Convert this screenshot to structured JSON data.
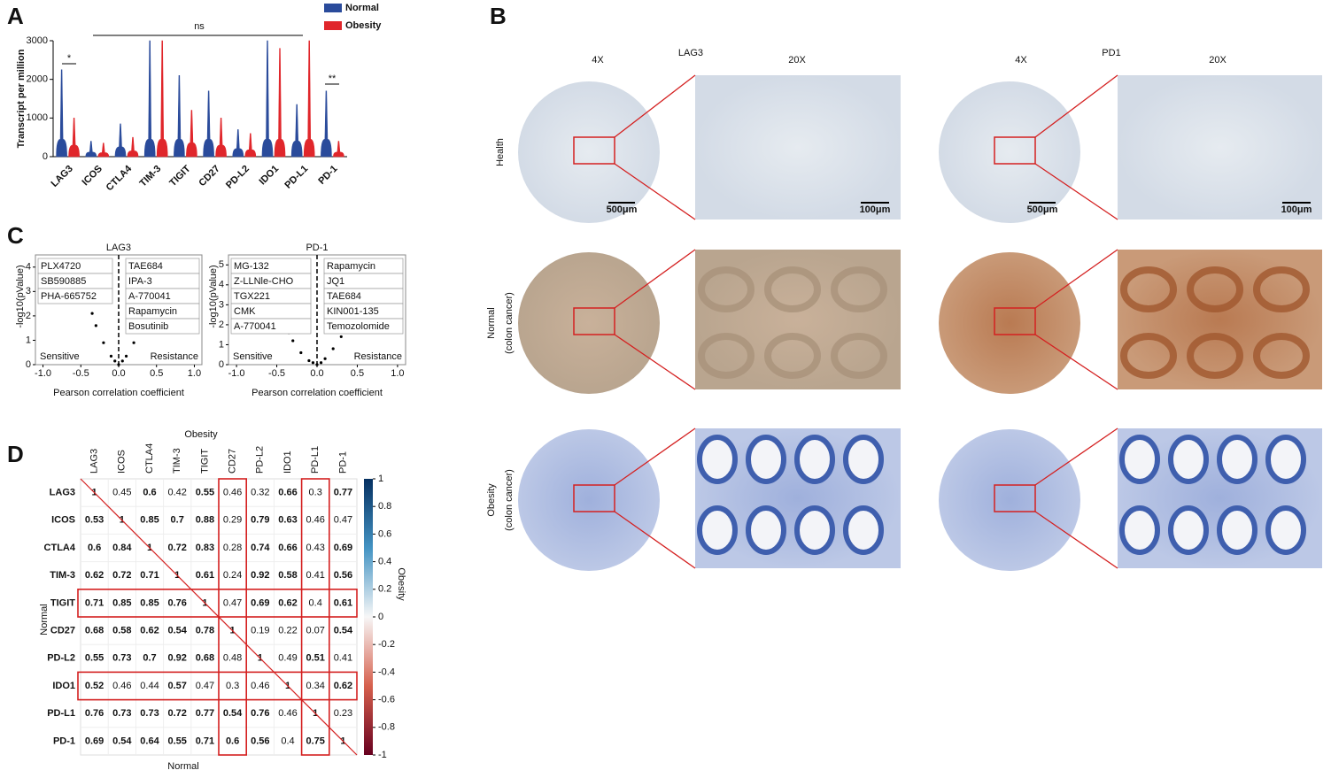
{
  "panel_labels": [
    "A",
    "B",
    "C",
    "D"
  ],
  "chart_data": [
    {
      "type": "violin",
      "ylabel": "Transcript per million",
      "categories": [
        "LAG3",
        "ICOS",
        "CTLA4",
        "TIM-3",
        "TIGIT",
        "CD27",
        "PD-L2",
        "IDO1",
        "PD-L1",
        "PD-1"
      ],
      "series": [
        {
          "name": "Normal",
          "color": "#2a4b9b",
          "values": [
            2250,
            400,
            850,
            3000,
            2100,
            1700,
            700,
            3000,
            1350,
            1700
          ]
        },
        {
          "name": "Obesity",
          "color": "#e0262b",
          "values": [
            1000,
            350,
            500,
            3000,
            1200,
            1000,
            600,
            2800,
            3000,
            400
          ]
        }
      ],
      "ylim": [
        0,
        3000
      ],
      "yticks": [
        0,
        1000,
        2000,
        3000
      ],
      "annotations": [
        "*",
        "ns",
        "**"
      ]
    },
    {
      "type": "scatter",
      "title": "LAG3",
      "xlabel": "Pearson correlation coefficient",
      "ylabel": "-log10(pValue)",
      "x": [
        -0.35,
        -0.3,
        -0.2,
        -0.1,
        -0.05,
        0,
        0.05,
        0.1,
        0.2,
        0.3,
        0.35
      ],
      "y": [
        2.1,
        1.6,
        0.9,
        0.35,
        0.15,
        0,
        0.15,
        0.35,
        0.9,
        1.6,
        2.1
      ],
      "color": "#000000",
      "xlim": [
        -1.1,
        1.1
      ],
      "ylim": [
        0,
        4.5
      ],
      "xticks": [
        {
          "value": -1,
          "label": "-1.0"
        },
        {
          "value": -0.5,
          "label": "-0.5"
        },
        {
          "value": 0,
          "label": "0.0"
        },
        {
          "value": 0.5,
          "label": "0.5"
        },
        {
          "value": 1,
          "label": "1.0"
        }
      ],
      "yticks": [
        0,
        1,
        2,
        3,
        4
      ],
      "sensitive_drugs": [
        "PLX4720",
        "SB590885",
        "PHA-665752"
      ],
      "resistance_drugs": [
        "TAE684",
        "IPA-3",
        "A-770041",
        "Rapamycin",
        "Bosutinib"
      ],
      "annotations": [
        "Sensitive",
        "Resistance"
      ]
    },
    {
      "type": "scatter",
      "title": "PD-1",
      "xlabel": "Pearson correlation coefficient",
      "ylabel": "-log10(pValue)",
      "x": [
        -0.35,
        -0.3,
        -0.2,
        -0.1,
        -0.05,
        0,
        0.05,
        0.1,
        0.2,
        0.3,
        0.35
      ],
      "y": [
        1.6,
        1.2,
        0.6,
        0.2,
        0.1,
        0,
        0.1,
        0.3,
        0.8,
        1.4,
        1.8
      ],
      "color": "#000000",
      "xlim": [
        -1.1,
        1.1
      ],
      "ylim": [
        0,
        5.5
      ],
      "xticks": [
        {
          "value": -1,
          "label": "-1.0"
        },
        {
          "value": -0.5,
          "label": "-0.5"
        },
        {
          "value": 0,
          "label": "0.0"
        },
        {
          "value": 0.5,
          "label": "0.5"
        },
        {
          "value": 1,
          "label": "1.0"
        }
      ],
      "yticks": [
        0,
        1,
        2,
        3,
        4,
        5
      ],
      "sensitive_drugs": [
        "MG-132",
        "Z-LLNle-CHO",
        "TGX221",
        "CMK",
        "A-770041"
      ],
      "resistance_drugs": [
        "Rapamycin",
        "JQ1",
        "TAE684",
        "KIN001-135",
        "Temozolomide"
      ],
      "annotations": [
        "Sensitive",
        "Resistance"
      ]
    },
    {
      "type": "heatmap",
      "top_label": "Obesity",
      "bottom_label": "Normal",
      "left_label": "Normal",
      "right_label": "Obesity",
      "categories": [
        "LAG3",
        "ICOS",
        "CTLA4",
        "TIM-3",
        "TIGIT",
        "CD27",
        "PD-L2",
        "IDO1",
        "PD-L1",
        "PD-1"
      ],
      "values": [
        [
          1,
          0.45,
          0.6,
          0.42,
          0.55,
          0.46,
          0.32,
          0.66,
          0.3,
          0.77
        ],
        [
          0.53,
          1,
          0.85,
          0.7,
          0.88,
          0.29,
          0.79,
          0.63,
          0.46,
          0.47
        ],
        [
          0.6,
          0.84,
          1,
          0.72,
          0.83,
          0.28,
          0.74,
          0.66,
          0.43,
          0.69
        ],
        [
          0.62,
          0.72,
          0.71,
          1,
          0.61,
          0.24,
          0.92,
          0.58,
          0.41,
          0.56
        ],
        [
          0.71,
          0.85,
          0.85,
          0.76,
          1,
          0.47,
          0.69,
          0.62,
          0.4,
          0.61
        ],
        [
          0.68,
          0.58,
          0.62,
          0.54,
          0.78,
          1,
          0.19,
          0.22,
          0.07,
          0.54
        ],
        [
          0.55,
          0.73,
          0.7,
          0.92,
          0.68,
          0.48,
          1,
          0.49,
          0.51,
          0.41
        ],
        [
          0.52,
          0.46,
          0.44,
          0.57,
          0.47,
          0.3,
          0.46,
          1,
          0.34,
          0.62
        ],
        [
          0.76,
          0.73,
          0.73,
          0.72,
          0.77,
          0.54,
          0.76,
          0.46,
          1,
          0.23
        ],
        [
          0.69,
          0.54,
          0.64,
          0.55,
          0.71,
          0.6,
          0.56,
          0.4,
          0.75,
          1
        ]
      ],
      "clim": [
        -1,
        1
      ],
      "colorbar_ticks": [
        1,
        0.8,
        0.6,
        0.4,
        0.2,
        0,
        -0.2,
        -0.4,
        -0.6,
        -0.8,
        -1
      ]
    }
  ],
  "panel_b": {
    "column_headers": [
      "4X",
      "LAG3",
      "20X",
      "4X",
      "PD1",
      "20X"
    ],
    "row_labels": [
      [
        "Health"
      ],
      [
        "Normal",
        "(colon cancer)"
      ],
      [
        "Obesity",
        "(colon cancer)"
      ]
    ],
    "scale_bars": [
      "500μm",
      "100μm",
      "500μm",
      "100μm"
    ]
  }
}
